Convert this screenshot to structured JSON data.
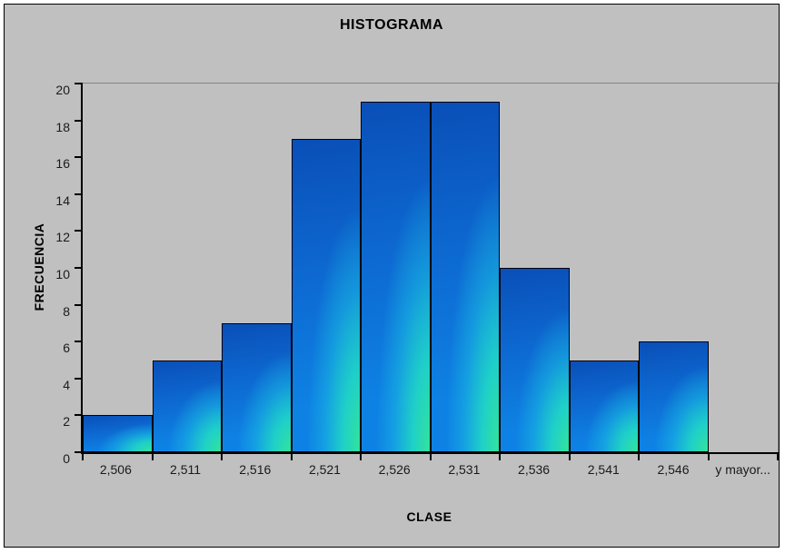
{
  "colors": {
    "page_background": "#ffffff",
    "chart_background": "#c0c0c0",
    "outer_border": "#000000",
    "axis_line": "#000000",
    "plot_frame_line": "#848484",
    "bar_border": "#000010",
    "bar_gradient": {
      "top_blue": "#0a4fb8",
      "mid_blue": "#0d6ad2",
      "lower_blue": "#0e82e4",
      "cyan": "#1fd0c8",
      "corner_green": "#33e39b"
    },
    "text": "#000000"
  },
  "chart_data": {
    "type": "bar",
    "title": "HISTOGRAMA",
    "xlabel": "CLASE",
    "ylabel": "FRECUENCIA",
    "categories": [
      "2,506",
      "2,511",
      "2,516",
      "2,521",
      "2,526",
      "2,531",
      "2,536",
      "2,541",
      "2,546",
      "y mayor..."
    ],
    "values": [
      2,
      5,
      7,
      17,
      19,
      19,
      10,
      5,
      6,
      0
    ],
    "ylim": [
      0,
      20
    ],
    "y_ticks": [
      0,
      2,
      4,
      6,
      8,
      10,
      12,
      14,
      16,
      18,
      20
    ],
    "grid": "off",
    "legend": "none",
    "bar_gap": 0
  }
}
